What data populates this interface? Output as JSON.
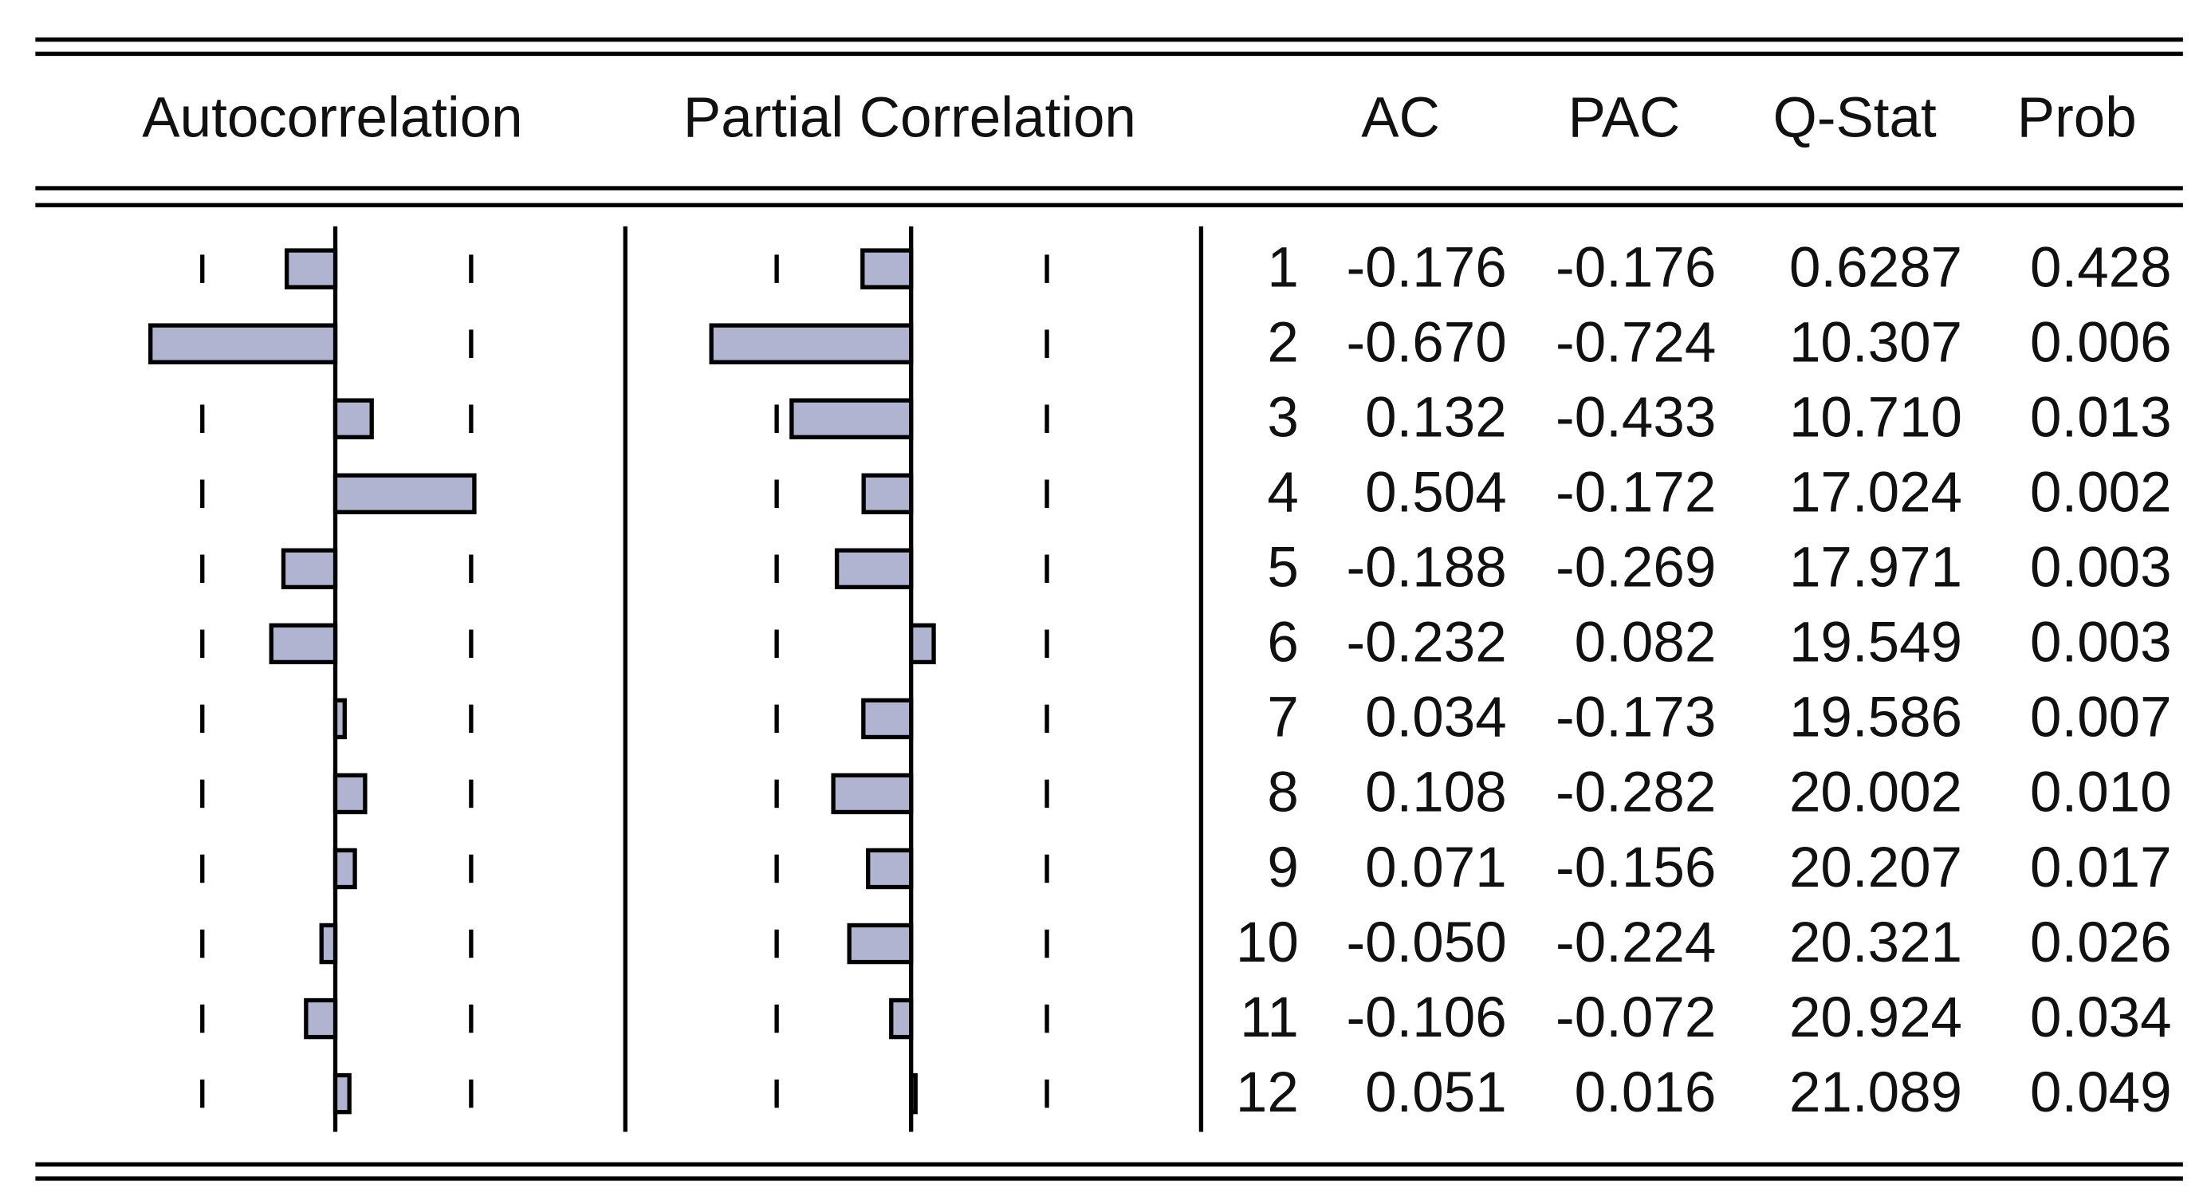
{
  "table": {
    "headers": [
      "Autocorrelation",
      "Partial Correlation",
      "AC",
      "PAC",
      "Q-Stat",
      "Prob"
    ],
    "rows": [
      [
        "1",
        "-0.176",
        "-0.176",
        "0.6287",
        "0.428"
      ],
      [
        "2",
        "-0.670",
        "-0.724",
        "10.307",
        "0.006"
      ],
      [
        "3",
        "0.132",
        "-0.433",
        "10.710",
        "0.013"
      ],
      [
        "4",
        "0.504",
        "-0.172",
        "17.024",
        "0.002"
      ],
      [
        "5",
        "-0.188",
        "-0.269",
        "17.971",
        "0.003"
      ],
      [
        "6",
        "-0.232",
        "0.082",
        "19.549",
        "0.003"
      ],
      [
        "7",
        "0.034",
        "-0.173",
        "19.586",
        "0.007"
      ],
      [
        "8",
        "0.108",
        "-0.282",
        "20.002",
        "0.010"
      ],
      [
        "9",
        "0.071",
        "-0.156",
        "20.207",
        "0.017"
      ],
      [
        "10",
        "-0.050",
        "-0.224",
        "20.321",
        "0.026"
      ],
      [
        "11",
        "-0.106",
        "-0.072",
        "20.924",
        "0.034"
      ],
      [
        "12",
        "0.051",
        "0.016",
        "21.089",
        "0.049"
      ]
    ]
  }
}
